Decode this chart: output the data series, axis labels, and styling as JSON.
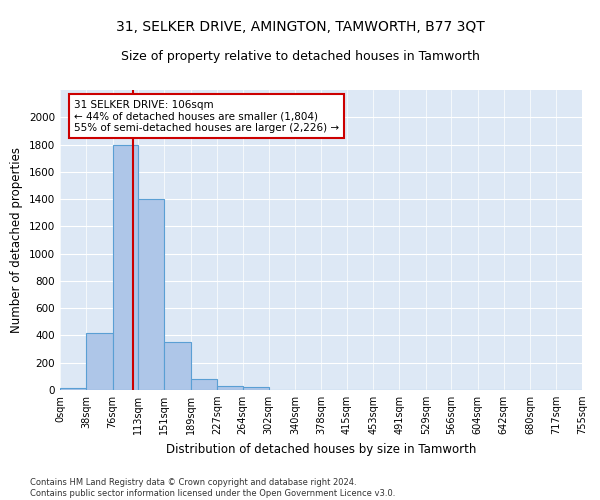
{
  "title": "31, SELKER DRIVE, AMINGTON, TAMWORTH, B77 3QT",
  "subtitle": "Size of property relative to detached houses in Tamworth",
  "xlabel": "Distribution of detached houses by size in Tamworth",
  "ylabel": "Number of detached properties",
  "bin_edges": [
    0,
    38,
    76,
    113,
    151,
    189,
    227,
    264,
    302,
    340,
    378,
    415,
    453,
    491,
    529,
    566,
    604,
    642,
    680,
    717,
    755
  ],
  "bar_heights": [
    15,
    420,
    1800,
    1400,
    350,
    80,
    30,
    20,
    0,
    0,
    0,
    0,
    0,
    0,
    0,
    0,
    0,
    0,
    0,
    0
  ],
  "bar_color": "#aec6e8",
  "bar_edge_color": "#5a9fd4",
  "property_size": 106,
  "vline_color": "#cc0000",
  "annotation_text": "31 SELKER DRIVE: 106sqm\n← 44% of detached houses are smaller (1,804)\n55% of semi-detached houses are larger (2,226) →",
  "annotation_box_color": "#ffffff",
  "annotation_box_edge": "#cc0000",
  "ylim": [
    0,
    2200
  ],
  "background_color": "#dde8f5",
  "footer_text": "Contains HM Land Registry data © Crown copyright and database right 2024.\nContains public sector information licensed under the Open Government Licence v3.0.",
  "title_fontsize": 10,
  "subtitle_fontsize": 9,
  "tick_label_fontsize": 7,
  "ylabel_fontsize": 8.5,
  "xlabel_fontsize": 8.5,
  "footer_fontsize": 6,
  "annotation_fontsize": 7.5,
  "yticks": [
    0,
    200,
    400,
    600,
    800,
    1000,
    1200,
    1400,
    1600,
    1800,
    2000
  ]
}
